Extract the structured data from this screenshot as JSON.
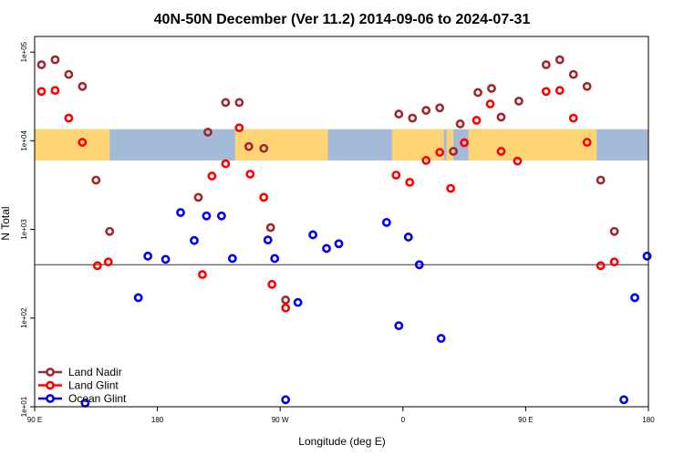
{
  "chart_data": {
    "type": "scatter",
    "title": "40N-50N December (Ver 11.2)   2014-09-06 to 2024-07-31",
    "xlabel": "Longitude (deg E)",
    "ylabel": "N Total",
    "xlim": [
      90,
      540
    ],
    "y_log": true,
    "ylim": [
      10,
      150000
    ],
    "x_ticks": [
      {
        "value": 90,
        "label": "90 E"
      },
      {
        "value": 180,
        "label": "180"
      },
      {
        "value": 270,
        "label": "90 W"
      },
      {
        "value": 360,
        "label": "0"
      },
      {
        "value": 450,
        "label": "90 E"
      },
      {
        "value": 540,
        "label": "180"
      }
    ],
    "y_ticks": [
      {
        "value": 10,
        "label": "1e+01"
      },
      {
        "value": 100,
        "label": "1e+02"
      },
      {
        "value": 1000,
        "label": "1e+03"
      },
      {
        "value": 10000,
        "label": "1e+04"
      },
      {
        "value": 100000,
        "label": "1e+05"
      }
    ],
    "reference_line": 400,
    "map_band": {
      "lat_range": "40N-50N",
      "value_range": [
        6000,
        13500
      ],
      "land_color": "#ffd475",
      "ocean_color": "#a4bad9"
    },
    "legend_position": "bottom-left",
    "series": [
      {
        "name": "Land Nadir",
        "color": "#a0282c",
        "points": [
          [
            95,
            72000
          ],
          [
            105,
            82000
          ],
          [
            115,
            56000
          ],
          [
            125,
            41000
          ],
          [
            135,
            3600
          ],
          [
            145,
            950
          ],
          [
            210,
            2300
          ],
          [
            217,
            12500
          ],
          [
            230,
            27000
          ],
          [
            240,
            27000
          ],
          [
            247,
            8600
          ],
          [
            258,
            8200
          ],
          [
            263,
            1050
          ],
          [
            274,
            160
          ],
          [
            357,
            20000
          ],
          [
            367,
            18000
          ],
          [
            377,
            22000
          ],
          [
            387,
            23500
          ],
          [
            397,
            7600
          ],
          [
            402,
            15500
          ],
          [
            415,
            35000
          ],
          [
            425,
            39000
          ],
          [
            432,
            18500
          ],
          [
            445,
            28000
          ],
          [
            465,
            72000
          ],
          [
            475,
            82000
          ],
          [
            485,
            56000
          ],
          [
            495,
            41000
          ],
          [
            505,
            3600
          ],
          [
            515,
            950
          ]
        ]
      },
      {
        "name": "Land Glint",
        "color": "#ff0000",
        "points": [
          [
            95,
            36000
          ],
          [
            105,
            37000
          ],
          [
            115,
            18000
          ],
          [
            125,
            9600
          ],
          [
            136,
            390
          ],
          [
            144,
            430
          ],
          [
            213,
            310
          ],
          [
            220,
            4000
          ],
          [
            230,
            5500
          ],
          [
            240,
            14000
          ],
          [
            248,
            4200
          ],
          [
            258,
            2300
          ],
          [
            264,
            240
          ],
          [
            274,
            130
          ],
          [
            355,
            4100
          ],
          [
            365,
            3400
          ],
          [
            377,
            6000
          ],
          [
            387,
            7400
          ],
          [
            395,
            2900
          ],
          [
            405,
            9500
          ],
          [
            414,
            17000
          ],
          [
            424,
            26000
          ],
          [
            432,
            7600
          ],
          [
            444,
            5900
          ],
          [
            465,
            36000
          ],
          [
            475,
            37000
          ],
          [
            485,
            18000
          ],
          [
            495,
            9600
          ],
          [
            505,
            390
          ],
          [
            515,
            430
          ]
        ]
      },
      {
        "name": "Ocean Glint",
        "color": "#0000ee",
        "points": [
          [
            127,
            11
          ],
          [
            166,
            170
          ],
          [
            173,
            500
          ],
          [
            186,
            460
          ],
          [
            197,
            1550
          ],
          [
            207,
            750
          ],
          [
            216,
            1420
          ],
          [
            227,
            1420
          ],
          [
            235,
            470
          ],
          [
            261,
            760
          ],
          [
            266,
            470
          ],
          [
            274,
            12
          ],
          [
            283,
            150
          ],
          [
            294,
            870
          ],
          [
            304,
            610
          ],
          [
            313,
            690
          ],
          [
            348,
            1200
          ],
          [
            357,
            82
          ],
          [
            364,
            820
          ],
          [
            372,
            400
          ],
          [
            388,
            59
          ],
          [
            522,
            12
          ],
          [
            530,
            170
          ],
          [
            539,
            500
          ]
        ]
      }
    ]
  }
}
